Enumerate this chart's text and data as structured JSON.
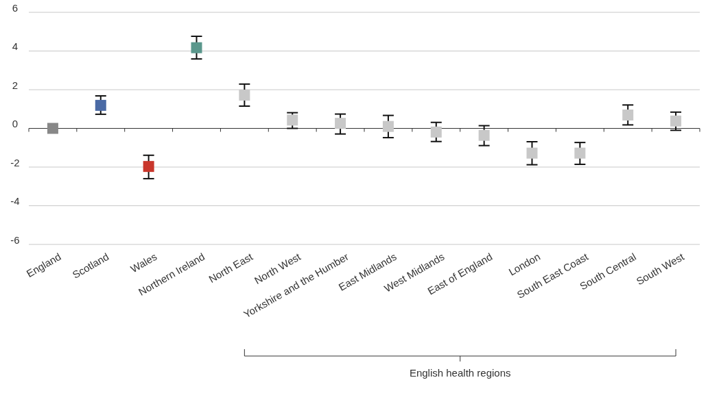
{
  "chart_data": {
    "type": "scatter",
    "categories": [
      "England",
      "Scotland",
      "Wales",
      "Northern Ireland",
      "North East",
      "North West",
      "Yorkshire and the Humber",
      "East Midlands",
      "West Midlands",
      "East of England",
      "London",
      "South East Coast",
      "South Central",
      "South West"
    ],
    "values": [
      0,
      1.19,
      -1.97,
      4.17,
      1.72,
      0.43,
      0.26,
      0.1,
      -0.19,
      -0.36,
      -1.28,
      -1.28,
      0.69,
      0.38
    ],
    "errors": [
      null,
      [
        0.73,
        1.68
      ],
      [
        -2.6,
        -1.39
      ],
      [
        3.59,
        4.76
      ],
      [
        1.15,
        2.29
      ],
      [
        0,
        0.81
      ],
      [
        -0.29,
        0.74
      ],
      [
        -0.48,
        0.67
      ],
      [
        -0.68,
        0.31
      ],
      [
        -0.89,
        0.14
      ],
      [
        -1.88,
        -0.69
      ],
      [
        -1.86,
        -0.73
      ],
      [
        0.18,
        1.21
      ],
      [
        -0.1,
        0.84
      ]
    ],
    "colors": [
      "#888888",
      "#4a6aa5",
      "#c9372c",
      "#5a978c",
      "#c8c8c8",
      "#c8c8c8",
      "#c8c8c8",
      "#c8c8c8",
      "#c8c8c8",
      "#c8c8c8",
      "#c8c8c8",
      "#c8c8c8",
      "#c8c8c8",
      "#c8c8c8"
    ],
    "marker": "square",
    "ylim": [
      -6,
      6
    ],
    "yticks": [
      -6,
      -4,
      -2,
      0,
      2,
      4,
      6
    ],
    "grid": "y",
    "annotations": [
      "English health regions"
    ]
  }
}
